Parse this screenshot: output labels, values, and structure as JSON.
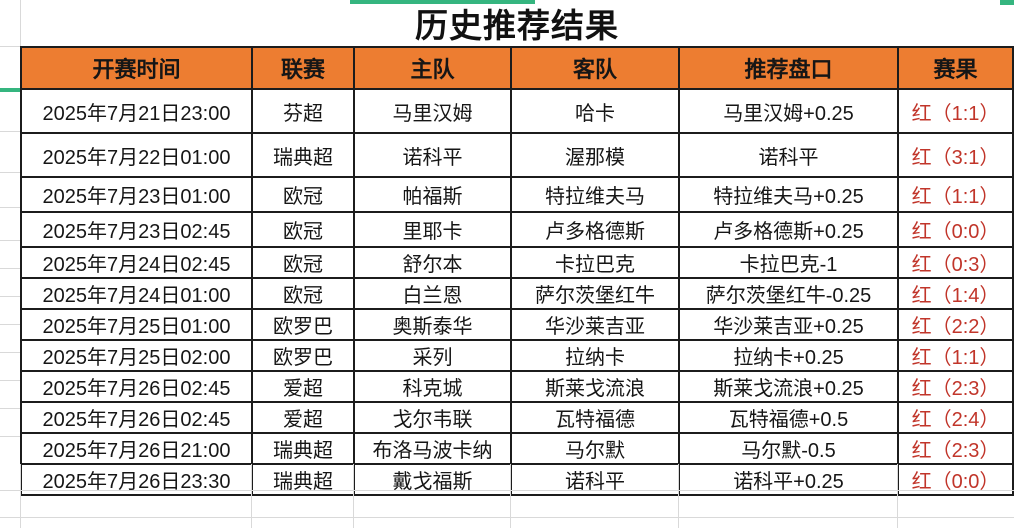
{
  "app": {
    "title": "历史推荐结果"
  },
  "table": {
    "headers": [
      "开赛时间",
      "联赛",
      "主队",
      "客队",
      "推荐盘口",
      "赛果"
    ],
    "rows": [
      {
        "time": "2025年7月21日23:00",
        "league": "芬超",
        "home": "马里汉姆",
        "away": "哈卡",
        "handicap": "马里汉姆+0.25",
        "result": "红（1:1）"
      },
      {
        "time": "2025年7月22日01:00",
        "league": "瑞典超",
        "home": "诺科平",
        "away": "渥那模",
        "handicap": "诺科平",
        "result": "红（3:1）"
      },
      {
        "time": "2025年7月23日01:00",
        "league": "欧冠",
        "home": "帕福斯",
        "away": "特拉维夫马",
        "handicap": "特拉维夫马+0.25",
        "result": "红（1:1）"
      },
      {
        "time": "2025年7月23日02:45",
        "league": "欧冠",
        "home": "里耶卡",
        "away": "卢多格德斯",
        "handicap": "卢多格德斯+0.25",
        "result": "红（0:0）"
      },
      {
        "time": "2025年7月24日02:45",
        "league": "欧冠",
        "home": "舒尔本",
        "away": "卡拉巴克",
        "handicap": "卡拉巴克-1",
        "result": "红（0:3）"
      },
      {
        "time": "2025年7月24日01:00",
        "league": "欧冠",
        "home": "白兰恩",
        "away": "萨尔茨堡红牛",
        "handicap": "萨尔茨堡红牛-0.25",
        "result": "红（1:4）"
      },
      {
        "time": "2025年7月25日01:00",
        "league": "欧罗巴",
        "home": "奥斯泰华",
        "away": "华沙莱吉亚",
        "handicap": "华沙莱吉亚+0.25",
        "result": "红（2:2）"
      },
      {
        "time": "2025年7月25日02:00",
        "league": "欧罗巴",
        "home": "采列",
        "away": "拉纳卡",
        "handicap": "拉纳卡+0.25",
        "result": "红（1:1）"
      },
      {
        "time": "2025年7月26日02:45",
        "league": "爱超",
        "home": "科克城",
        "away": "斯莱戈流浪",
        "handicap": "斯莱戈流浪+0.25",
        "result": "红（2:3）"
      },
      {
        "time": "2025年7月26日02:45",
        "league": "爱超",
        "home": "戈尔韦联",
        "away": "瓦特福德",
        "handicap": "瓦特福德+0.5",
        "result": "红（2:4）"
      },
      {
        "time": "2025年7月26日21:00",
        "league": "瑞典超",
        "home": "布洛马波卡纳",
        "away": "马尔默",
        "handicap": "马尔默-0.5",
        "result": "红（2:3）"
      },
      {
        "time": "2025年7月26日23:30",
        "league": "瑞典超",
        "home": "戴戈福斯",
        "away": "诺科平",
        "handicap": "诺科平+0.25",
        "result": "红（0:0）"
      }
    ]
  },
  "colors": {
    "header_bg": "#ED7D31",
    "result_red": "#C1352A",
    "border_black": "#1C1C1C",
    "gridline_gray": "#D9D9D9",
    "selection_green": "#35B57F"
  }
}
